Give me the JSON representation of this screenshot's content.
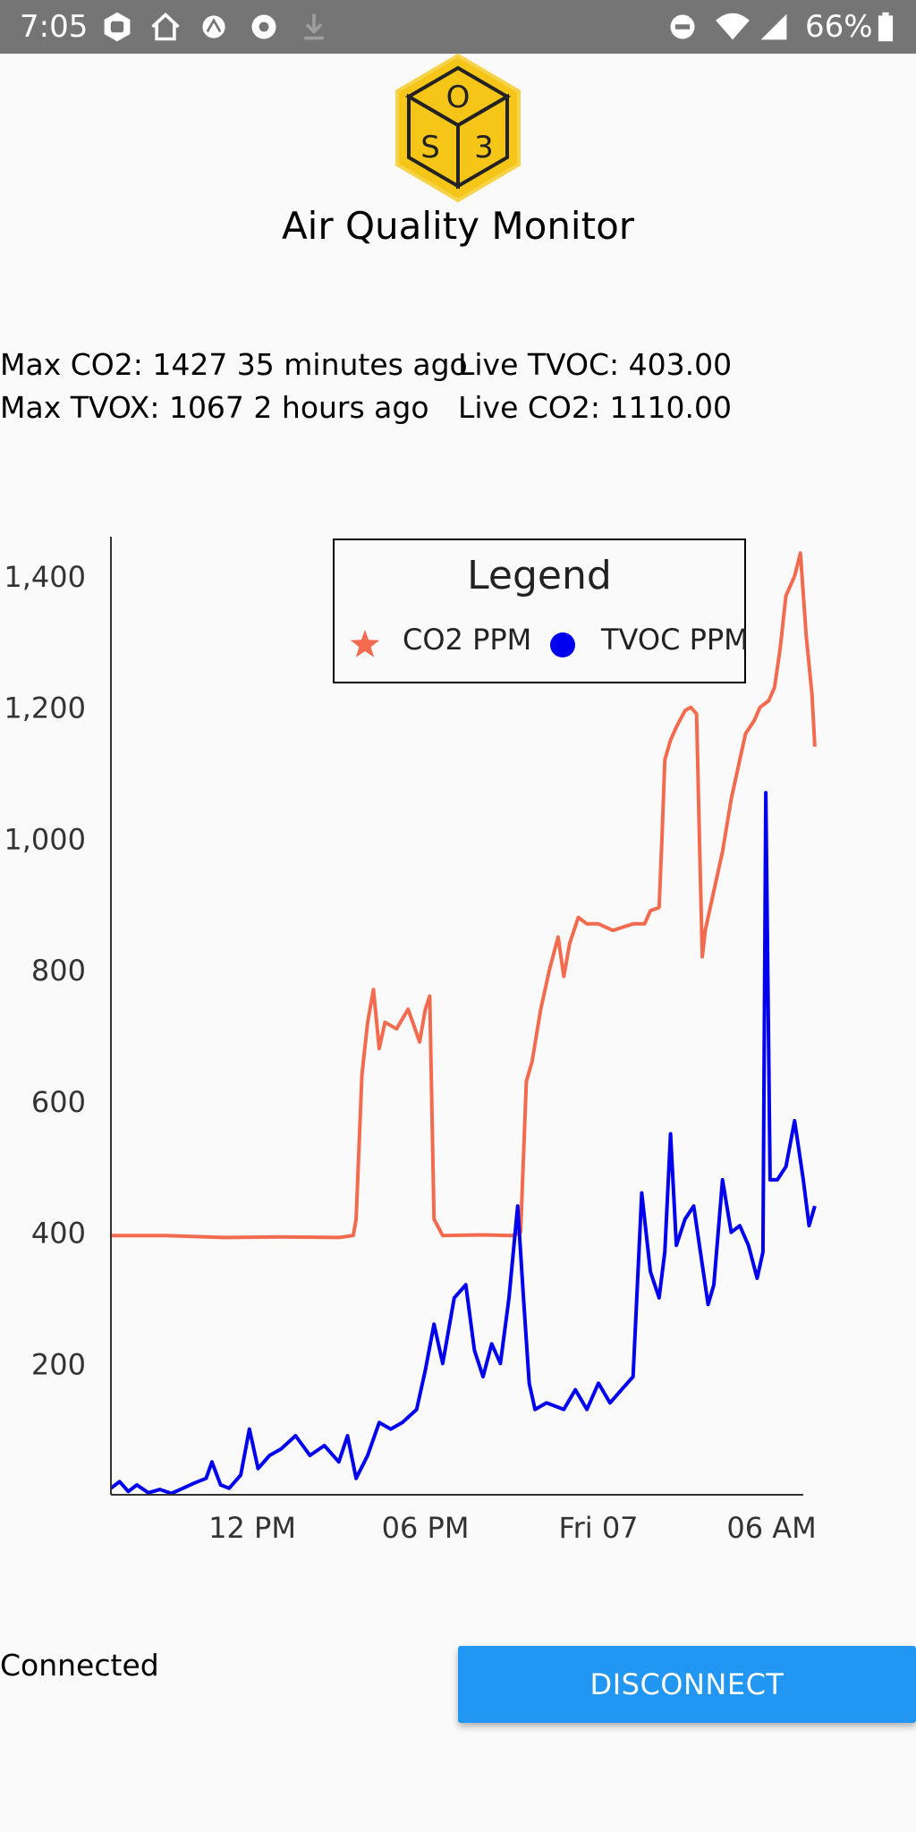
{
  "status_bar": {
    "time": "7:05",
    "battery": "66%",
    "icons": [
      "notification-icon",
      "home-icon",
      "app-icon",
      "app-icon",
      "download-icon",
      "dnd-icon",
      "wifi-icon",
      "signal-icon",
      "battery-icon"
    ]
  },
  "logo": {
    "letters": [
      "O",
      "S",
      "3"
    ],
    "color": "#f5c518"
  },
  "app_title": "Air Quality Monitor",
  "stats": {
    "max_co2": "Max CO2: 1427 35 minutes ago",
    "max_tvox": "Max TVOX: 1067 2 hours ago",
    "live_tvoc": "Live TVOC: 403.00",
    "live_co2": "Live CO2: 1110.00"
  },
  "chart_data": {
    "type": "line",
    "legend": {
      "title": "Legend",
      "placement": "top-right"
    },
    "y_ticks": [
      "1,400",
      "1,200",
      "1,000",
      "800",
      "600",
      "400",
      "200"
    ],
    "y_tick_values": [
      1400,
      1200,
      1000,
      800,
      600,
      400,
      200
    ],
    "x_ticks": [
      "12 PM",
      "06 PM",
      "Fri 07",
      "06 AM"
    ],
    "x_tick_hours": [
      12,
      18,
      24,
      30
    ],
    "x_range_hours": [
      7.1,
      31.1
    ],
    "ylim": [
      0,
      1460
    ],
    "series": [
      {
        "name": "CO2 PPM",
        "color": "#f26b4f",
        "marker": "star",
        "points": [
          [
            7.1,
            395
          ],
          [
            9,
            395
          ],
          [
            11,
            392
          ],
          [
            13,
            393
          ],
          [
            15,
            392
          ],
          [
            15.5,
            395
          ],
          [
            15.6,
            420
          ],
          [
            15.8,
            640
          ],
          [
            16,
            720
          ],
          [
            16.2,
            770
          ],
          [
            16.4,
            680
          ],
          [
            16.6,
            720
          ],
          [
            17,
            710
          ],
          [
            17.4,
            740
          ],
          [
            17.8,
            690
          ],
          [
            18,
            740
          ],
          [
            18.15,
            760
          ],
          [
            18.3,
            420
          ],
          [
            18.6,
            395
          ],
          [
            20,
            396
          ],
          [
            21,
            395
          ],
          [
            21.3,
            400
          ],
          [
            21.5,
            630
          ],
          [
            21.7,
            660
          ],
          [
            22,
            740
          ],
          [
            22.3,
            800
          ],
          [
            22.6,
            850
          ],
          [
            22.8,
            790
          ],
          [
            23,
            840
          ],
          [
            23.3,
            880
          ],
          [
            23.6,
            870
          ],
          [
            24,
            870
          ],
          [
            24.5,
            860
          ],
          [
            25.2,
            870
          ],
          [
            25.6,
            870
          ],
          [
            25.8,
            890
          ],
          [
            26.1,
            895
          ],
          [
            26.2,
            1000
          ],
          [
            26.3,
            1120
          ],
          [
            26.5,
            1150
          ],
          [
            26.7,
            1170
          ],
          [
            27,
            1195
          ],
          [
            27.2,
            1200
          ],
          [
            27.4,
            1190
          ],
          [
            27.5,
            1000
          ],
          [
            27.6,
            820
          ],
          [
            27.7,
            860
          ],
          [
            28,
            920
          ],
          [
            28.3,
            980
          ],
          [
            28.6,
            1060
          ],
          [
            28.9,
            1120
          ],
          [
            29.1,
            1160
          ],
          [
            29.4,
            1180
          ],
          [
            29.6,
            1200
          ],
          [
            29.9,
            1210
          ],
          [
            30.1,
            1230
          ],
          [
            30.3,
            1290
          ],
          [
            30.5,
            1370
          ],
          [
            30.8,
            1400
          ],
          [
            31,
            1435
          ],
          [
            31.2,
            1310
          ],
          [
            31.4,
            1220
          ],
          [
            31.5,
            1140
          ]
        ]
      },
      {
        "name": "TVOC PPM",
        "color": "#0000ee",
        "marker": "circle",
        "points": [
          [
            7.1,
            10
          ],
          [
            7.4,
            20
          ],
          [
            7.7,
            5
          ],
          [
            8,
            15
          ],
          [
            8.4,
            3
          ],
          [
            8.8,
            8
          ],
          [
            9.2,
            2
          ],
          [
            9.6,
            10
          ],
          [
            10,
            18
          ],
          [
            10.4,
            25
          ],
          [
            10.6,
            50
          ],
          [
            10.9,
            15
          ],
          [
            11.2,
            10
          ],
          [
            11.6,
            30
          ],
          [
            11.9,
            100
          ],
          [
            12.2,
            40
          ],
          [
            12.6,
            60
          ],
          [
            13,
            70
          ],
          [
            13.5,
            90
          ],
          [
            14,
            60
          ],
          [
            14.5,
            75
          ],
          [
            15,
            50
          ],
          [
            15.3,
            90
          ],
          [
            15.6,
            25
          ],
          [
            16,
            60
          ],
          [
            16.4,
            110
          ],
          [
            16.8,
            100
          ],
          [
            17.2,
            110
          ],
          [
            17.7,
            130
          ],
          [
            18,
            190
          ],
          [
            18.3,
            260
          ],
          [
            18.6,
            200
          ],
          [
            19,
            300
          ],
          [
            19.4,
            320
          ],
          [
            19.7,
            220
          ],
          [
            20,
            180
          ],
          [
            20.3,
            230
          ],
          [
            20.6,
            200
          ],
          [
            20.9,
            300
          ],
          [
            21.2,
            440
          ],
          [
            21.4,
            300
          ],
          [
            21.6,
            170
          ],
          [
            21.8,
            130
          ],
          [
            22.2,
            140
          ],
          [
            22.8,
            130
          ],
          [
            23.2,
            160
          ],
          [
            23.6,
            130
          ],
          [
            24,
            170
          ],
          [
            24.4,
            140
          ],
          [
            24.8,
            160
          ],
          [
            25.2,
            180
          ],
          [
            25.5,
            460
          ],
          [
            25.8,
            340
          ],
          [
            26.1,
            300
          ],
          [
            26.3,
            370
          ],
          [
            26.5,
            550
          ],
          [
            26.7,
            380
          ],
          [
            27,
            420
          ],
          [
            27.3,
            440
          ],
          [
            27.5,
            380
          ],
          [
            27.8,
            290
          ],
          [
            28,
            320
          ],
          [
            28.3,
            480
          ],
          [
            28.6,
            400
          ],
          [
            28.9,
            410
          ],
          [
            29.2,
            380
          ],
          [
            29.5,
            330
          ],
          [
            29.7,
            370
          ],
          [
            29.8,
            1070
          ],
          [
            29.95,
            480
          ],
          [
            30.2,
            480
          ],
          [
            30.5,
            500
          ],
          [
            30.8,
            570
          ],
          [
            31.1,
            480
          ],
          [
            31.3,
            410
          ],
          [
            31.5,
            440
          ]
        ]
      }
    ]
  },
  "connection": {
    "status": "Connected",
    "button_label": "DISCONNECT"
  }
}
